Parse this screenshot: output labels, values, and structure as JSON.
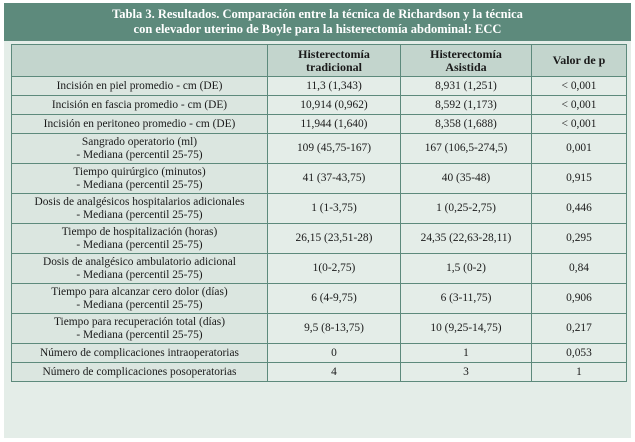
{
  "title": {
    "line1": "Tabla 3. Resultados. Comparación entre la técnica de Richardson y la técnica",
    "line2": "con elevador uterino de Boyle  para la histerectomía abdominal: ECC"
  },
  "header": {
    "col1_line1": "Histerectomía",
    "col1_line2": "tradicional",
    "col2_line1": "Histerectomía",
    "col2_line2": "Asistida",
    "col3": "Valor de p"
  },
  "rows": [
    {
      "label1": "Incisión en piel promedio - cm (DE)",
      "label2": "",
      "trad": "11,3 (1,343)",
      "asis": "8,931 (1,251)",
      "p": "< 0,001"
    },
    {
      "label1": "Incisión en fascia promedio - cm (DE)",
      "label2": "",
      "trad": "10,914 (0,962)",
      "asis": "8,592 (1,173)",
      "p": "< 0,001"
    },
    {
      "label1": "Incisión en peritoneo promedio - cm (DE)",
      "label2": "",
      "trad": "11,944 (1,640)",
      "asis": "8,358 (1,688)",
      "p": "< 0,001"
    },
    {
      "label1": "Sangrado operatorio (ml)",
      "label2": "- Mediana (percentil 25-75)",
      "trad": "109 (45,75-167)",
      "asis": "167 (106,5-274,5)",
      "p": "0,001"
    },
    {
      "label1": "Tiempo quirúrgico (minutos)",
      "label2": "- Mediana (percentil 25-75)",
      "trad": "41 (37-43,75)",
      "asis": "40 (35-48)",
      "p": "0,915"
    },
    {
      "label1": "Dosis de analgésicos hospitalarios adicionales",
      "label2": "- Mediana (percentil 25-75)",
      "trad": "1 (1-3,75)",
      "asis": "1 (0,25-2,75)",
      "p": "0,446"
    },
    {
      "label1": "Tiempo de hospitalización (horas)",
      "label2": "- Mediana (percentil 25-75)",
      "trad": "26,15 (23,51-28)",
      "asis": "24,35 (22,63-28,11)",
      "p": "0,295"
    },
    {
      "label1": "Dosis de analgésico ambulatorio adicional",
      "label2": "- Mediana (percentil 25-75)",
      "trad": "1(0-2,75)",
      "asis": "1,5 (0-2)",
      "p": "0,84"
    },
    {
      "label1": "Tiempo para alcanzar cero dolor (días)",
      "label2": "- Mediana (percentil 25-75)",
      "trad": "6 (4-9,75)",
      "asis": "6 (3-11,75)",
      "p": "0,906"
    },
    {
      "label1": "Tiempo para recuperación total (días)",
      "label2": "- Mediana (percentil 25-75)",
      "trad": "9,5 (8-13,75)",
      "asis": "10 (9,25-14,75)",
      "p": "0,217"
    },
    {
      "label1": "Número de complicaciones intraoperatorias",
      "label2": "",
      "trad": "0",
      "asis": "1",
      "p": "0,053"
    },
    {
      "label1": "Número de complicaciones posoperatorias",
      "label2": "",
      "trad": "4",
      "asis": "3",
      "p": "1"
    }
  ],
  "colors": {
    "title_bg": "#5d8a7c",
    "header_bg": "#c3d5cd",
    "body_bg": "#e4ede8",
    "border": "#5d8a7c"
  }
}
